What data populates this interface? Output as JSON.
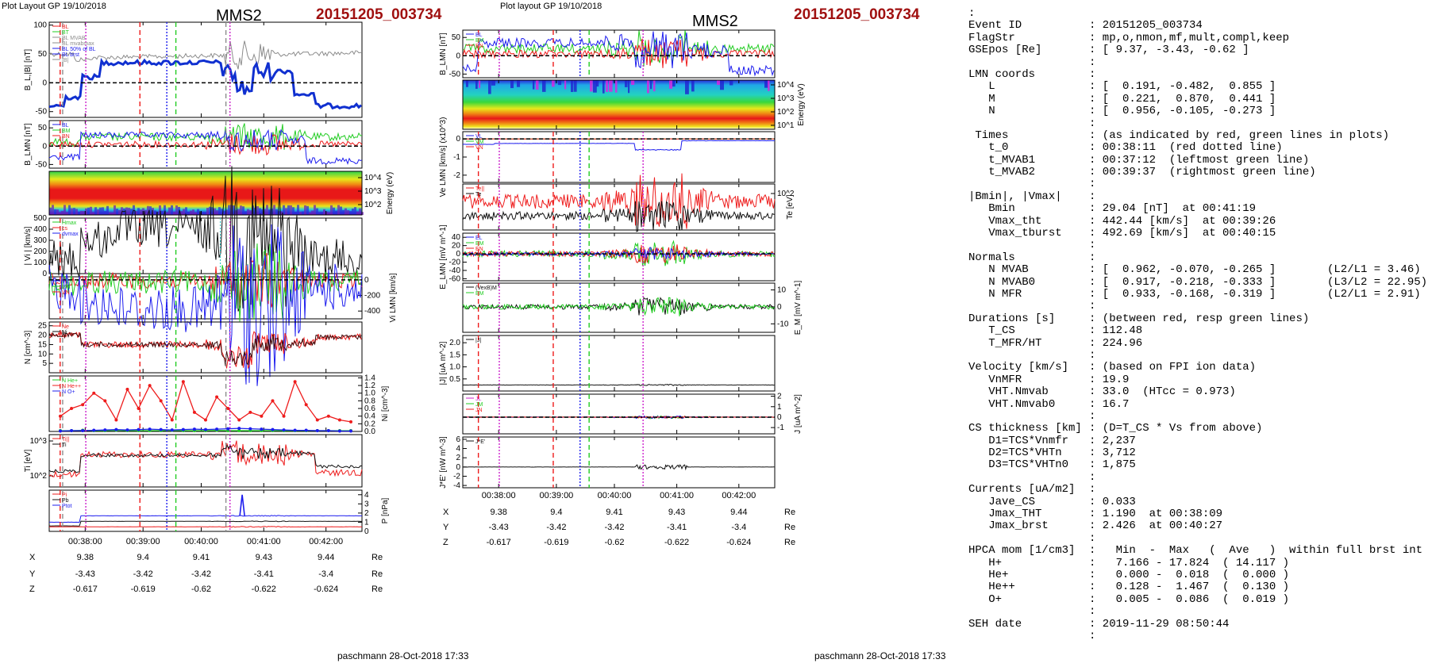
{
  "left_plot": {
    "header": "Plot Layout GP 19/10/2018",
    "spacecraft": "MMS2",
    "event": "20151205_003734",
    "footer": "paschmann 28-Oct-2018 17:33"
  },
  "middle_plot": {
    "header": "Plot layout GP 19/10/2018",
    "spacecraft": "MMS2",
    "event": "20151205_003734",
    "footer": "paschmann 28-Oct-2018 17:33"
  },
  "colors": {
    "red": "#ee1c1c",
    "green": "#22cc22",
    "blue": "#1c1cee",
    "black": "#111111",
    "gray": "#8c8c8c",
    "magenta": "#cc22cc",
    "event_red": "#a01010",
    "thick_blue": "#1030d0"
  },
  "chart_data": [
    {
      "type": "line",
      "panel": "left-B",
      "ylabel": "B_L,|B| [nT]",
      "yticks": [
        "100",
        "50",
        "0",
        "-50"
      ],
      "ylim": [
        -60,
        105
      ],
      "legend": [
        "BL",
        "BT",
        "BL MVAB",
        "BL mvabmax",
        "BL 50% of BL",
        "BL brst",
        "|B|"
      ]
    },
    {
      "type": "line",
      "panel": "left-BLMN",
      "ylabel": "B_LMN [nT]",
      "yticks": [
        "50",
        "0",
        "-50"
      ],
      "ylim": [
        -60,
        70
      ],
      "legend": [
        "BL",
        "BM",
        "BN"
      ]
    },
    {
      "type": "heatmap",
      "panel": "left-ion-spectrogram",
      "ylabel": "Energy (eV)",
      "yticks": [
        "10^4",
        "10^3",
        "10^2"
      ]
    },
    {
      "type": "line",
      "panel": "left-Vi",
      "ylabel": "| Vi | [km/s]",
      "yticks": [
        "500",
        "400",
        "300",
        "200",
        "100",
        "0"
      ],
      "ylim": [
        0,
        500
      ],
      "legend": [
        "Hmax",
        "cs",
        "dvmax"
      ]
    },
    {
      "type": "line",
      "panel": "left-ViLMN",
      "ylabel": "Vi LMN [km/s]",
      "yticks": [
        "0",
        "-200",
        "-400"
      ],
      "ylim": [
        -500,
        40
      ],
      "legend": [
        "VL",
        "VM",
        "VN"
      ]
    },
    {
      "type": "line",
      "panel": "left-N",
      "ylabel": "N [cm^-3]",
      "yticks": [
        "25",
        "20",
        "15",
        "10",
        "5"
      ],
      "ylim": [
        0,
        27
      ],
      "legend": [
        "Ne",
        "Ni"
      ]
    },
    {
      "type": "line",
      "panel": "left-Ni",
      "ylabel": "Ni [cm^-3]",
      "yticks": [
        "1.4",
        "1.2",
        "1.0",
        "0.8",
        "0.6",
        "0.4",
        "0.2",
        "0.0"
      ],
      "ylim": [
        0,
        1.45
      ],
      "legend": [
        "N He+",
        "N He++",
        "N O+"
      ],
      "series": [
        {
          "name": "N He++",
          "values": [
            0.4,
            0.6,
            0.7,
            1.0,
            0.8,
            0.3,
            1.1,
            0.6,
            1.2,
            0.8,
            0.3,
            1.3,
            0.5,
            0.3,
            0.9,
            0.6,
            0.3,
            0.5,
            0.4,
            0.8,
            0.4,
            1.3,
            0.7,
            0.3,
            0.4,
            0.3,
            0.25
          ]
        },
        {
          "name": "N He+",
          "values": [
            0.02,
            0.02,
            0.03,
            0.02,
            0.02,
            0.03,
            0.02,
            0.02,
            0.02,
            0.02,
            0.03,
            0.02,
            0.02,
            0.02,
            0.03,
            0.02,
            0.02,
            0.02,
            0.02,
            0.02,
            0.02,
            0.02,
            0.02,
            0.02,
            0.02,
            0.02,
            0.02
          ]
        },
        {
          "name": "N O+",
          "values": [
            0.01,
            0.02,
            0.02,
            0.03,
            0.04,
            0.05,
            0.04,
            0.05,
            0.06,
            0.05,
            0.04,
            0.05,
            0.06,
            0.05,
            0.06,
            0.07,
            0.08,
            0.07,
            0.06,
            0.05,
            0.04,
            0.03,
            0.03,
            0.02,
            0.02,
            0.01,
            0.01
          ]
        }
      ]
    },
    {
      "type": "line",
      "panel": "left-Ti",
      "ylabel": "Ti [eV]",
      "yticks": [
        "10^3",
        "10^2"
      ],
      "legend": [
        "Ti||",
        "Ti"
      ]
    },
    {
      "type": "line",
      "panel": "left-P",
      "ylabel": "P [nPa]",
      "yticks": [
        "4",
        "3",
        "2",
        "1",
        "0"
      ],
      "ylim": [
        0,
        4.5
      ],
      "legend": [
        "Pi",
        "Pb",
        "Ptot"
      ]
    },
    {
      "type": "line",
      "panel": "mid-BLMN",
      "ylabel": "B_LMN [nT]",
      "yticks": [
        "50",
        "0",
        "-50"
      ],
      "ylim": [
        -60,
        70
      ],
      "legend": [
        "BL",
        "BM",
        "BN"
      ]
    },
    {
      "type": "heatmap",
      "panel": "mid-electron-spectrogram",
      "ylabel": "Energy (eV)",
      "yticks": [
        "10^4",
        "10^3",
        "10^2",
        "10^1"
      ]
    },
    {
      "type": "line",
      "panel": "mid-Ve",
      "ylabel": "Ve LMN [km/s] (x10^3)",
      "yticks": [
        "0",
        "-1",
        "-2"
      ],
      "ylim": [
        -2.4,
        0.4
      ],
      "legend": [
        "VL",
        "VM",
        "VN"
      ]
    },
    {
      "type": "line",
      "panel": "mid-Te",
      "ylabel": "Te [eV]",
      "yticks": [
        "10^2"
      ],
      "legend": [
        "Te||",
        "Te"
      ]
    },
    {
      "type": "line",
      "panel": "mid-E",
      "ylabel": "E_LMN [mV m^-1]",
      "yticks": [
        "40",
        "20",
        "0",
        "-20",
        "-40",
        "-60"
      ],
      "ylim": [
        -65,
        50
      ],
      "legend": [
        "EL",
        "EM",
        "EN"
      ]
    },
    {
      "type": "line",
      "panel": "mid-EM",
      "ylabel": "E_M [mV m^-1]",
      "yticks": [
        "10",
        "0",
        "-10"
      ],
      "ylim": [
        -15,
        14
      ],
      "legend": [
        "(VexB)M",
        "EM"
      ]
    },
    {
      "type": "line",
      "panel": "mid-J",
      "ylabel": "|J| [uA m^-2]",
      "yticks": [
        "2.0",
        "1.5",
        "1.0",
        "0.5"
      ],
      "ylim": [
        0,
        2.3
      ],
      "legend": [
        "|J|"
      ]
    },
    {
      "type": "line",
      "panel": "mid-JLMN",
      "ylabel": "J [uA m^-2]",
      "yticks": [
        "2",
        "1",
        "0",
        "-1"
      ],
      "ylim": [
        -1.6,
        2.2
      ],
      "legend": [
        "JL",
        "JM",
        "JN"
      ]
    },
    {
      "type": "line",
      "panel": "mid-JE",
      "ylabel": "J*E' [nW m^-3]",
      "yticks": [
        "6",
        "4",
        "2",
        "0",
        "-2",
        "-4"
      ],
      "ylim": [
        -4.5,
        6.5
      ],
      "legend": [
        "J*E'"
      ]
    }
  ],
  "time_axis": {
    "ticks": [
      "00:38:00",
      "00:39:00",
      "00:40:00",
      "00:41:00",
      "00:42:00"
    ]
  },
  "orbit": {
    "labels": [
      "X",
      "Y",
      "Z"
    ],
    "unit": "Re",
    "rows": [
      [
        "9.38",
        "9.4",
        "9.41",
        "9.43",
        "9.44"
      ],
      [
        "-3.43",
        "-3.42",
        "-3.42",
        "-3.41",
        "-3.4"
      ],
      [
        "-0.617",
        "-0.619",
        "-0.62",
        "-0.622",
        "-0.624"
      ]
    ]
  },
  "summary": [
    [
      ":",
      "",
      ""
    ],
    [
      "Event ID",
      ": 20151205_003734",
      ""
    ],
    [
      "FlagStr",
      ": mp,o,nmon,mf,mult,compl,keep",
      ""
    ],
    [
      "GSEpos [Re]",
      ": [ 9.37, -3.43, -0.62 ]",
      ""
    ],
    [
      "",
      ":",
      ""
    ],
    [
      "LMN coords",
      ":",
      ""
    ],
    [
      "   L",
      ": [  0.191, -0.482,  0.855 ]",
      ""
    ],
    [
      "   M",
      ": [  0.221,  0.870,  0.441 ]",
      ""
    ],
    [
      "   N",
      ": [  0.956, -0.105, -0.273 ]",
      ""
    ],
    [
      "",
      ":",
      ""
    ],
    [
      " Times",
      ": (as indicated by red, green lines in plots)",
      ""
    ],
    [
      "   t_0",
      ": 00:38:11  (red dotted line)",
      ""
    ],
    [
      "   t_MVAB1",
      ": 00:37:12  (leftmost green line)",
      ""
    ],
    [
      "   t_MVAB2",
      ": 00:39:37  (rightmost green line)",
      ""
    ],
    [
      "",
      ":",
      ""
    ],
    [
      "|Bmin|, |Vmax|",
      ":",
      ""
    ],
    [
      "   Bmin",
      ": 29.04 [nT]  at 00:41:19",
      ""
    ],
    [
      "   Vmax_tht",
      ": 442.44 [km/s]  at 00:39:26",
      ""
    ],
    [
      "   Vmax_tburst",
      ": 492.69 [km/s]  at 00:40:15",
      ""
    ],
    [
      "",
      ":",
      ""
    ],
    [
      "Normals",
      ":",
      ""
    ],
    [
      "   N MVAB",
      ": [  0.962, -0.070, -0.265 ]",
      "(L2/L1 = 3.46)"
    ],
    [
      "   N MVAB0",
      ": [  0.917, -0.218, -0.333 ]",
      "(L3/L2 = 22.95)"
    ],
    [
      "   N MFR",
      ": [  0.933, -0.168, -0.319 ]",
      "(L2/L1 = 2.91)"
    ],
    [
      "",
      ":",
      ""
    ],
    [
      "Durations [s]",
      ": (between red, resp green lines)",
      ""
    ],
    [
      "   T_CS",
      ": 112.48",
      ""
    ],
    [
      "   T_MFR/HT",
      ": 224.96",
      ""
    ],
    [
      "",
      ":",
      ""
    ],
    [
      "Velocity [km/s]",
      ": (based on FPI ion data)",
      ""
    ],
    [
      "   VnMFR",
      ": 19.9",
      ""
    ],
    [
      "   VHT.Nmvab",
      ": 33.0  (HTcc = 0.973)",
      ""
    ],
    [
      "   VHT.Nmvab0",
      ": 16.7",
      ""
    ],
    [
      "",
      ":",
      ""
    ],
    [
      "CS thickness [km]",
      ": (D=T_CS * Vs from above)",
      ""
    ],
    [
      "   D1=TCS*Vnmfr",
      ": 2,237",
      ""
    ],
    [
      "   D2=TCS*VHTn",
      ": 3,712",
      ""
    ],
    [
      "   D3=TCS*VHTn0",
      ": 1,875",
      ""
    ],
    [
      "",
      ":",
      ""
    ],
    [
      "Currents [uA/m2]",
      ":",
      ""
    ],
    [
      "   Jave_CS",
      ": 0.033",
      ""
    ],
    [
      "   Jmax_THT",
      ": 1.190  at 00:38:09",
      ""
    ],
    [
      "   Jmax_brst",
      ": 2.426  at 00:40:27",
      ""
    ],
    [
      "",
      ":",
      ""
    ],
    [
      "HPCA mom [1/cm3]",
      ":   Min  -  Max   (  Ave   )  within full brst int",
      ""
    ],
    [
      "   H+",
      ":   7.166 - 17.824  ( 14.117 )",
      ""
    ],
    [
      "   He+",
      ":   0.000 -  0.018  (  0.000 )",
      ""
    ],
    [
      "   He++",
      ":   0.128 -  1.467  (  0.130 )",
      ""
    ],
    [
      "   O+",
      ":   0.005 -  0.086  (  0.019 )",
      ""
    ],
    [
      "",
      ":",
      ""
    ],
    [
      "SEH date",
      ": 2019-11-29 08:50:44",
      ""
    ],
    [
      "",
      ":",
      ""
    ]
  ]
}
